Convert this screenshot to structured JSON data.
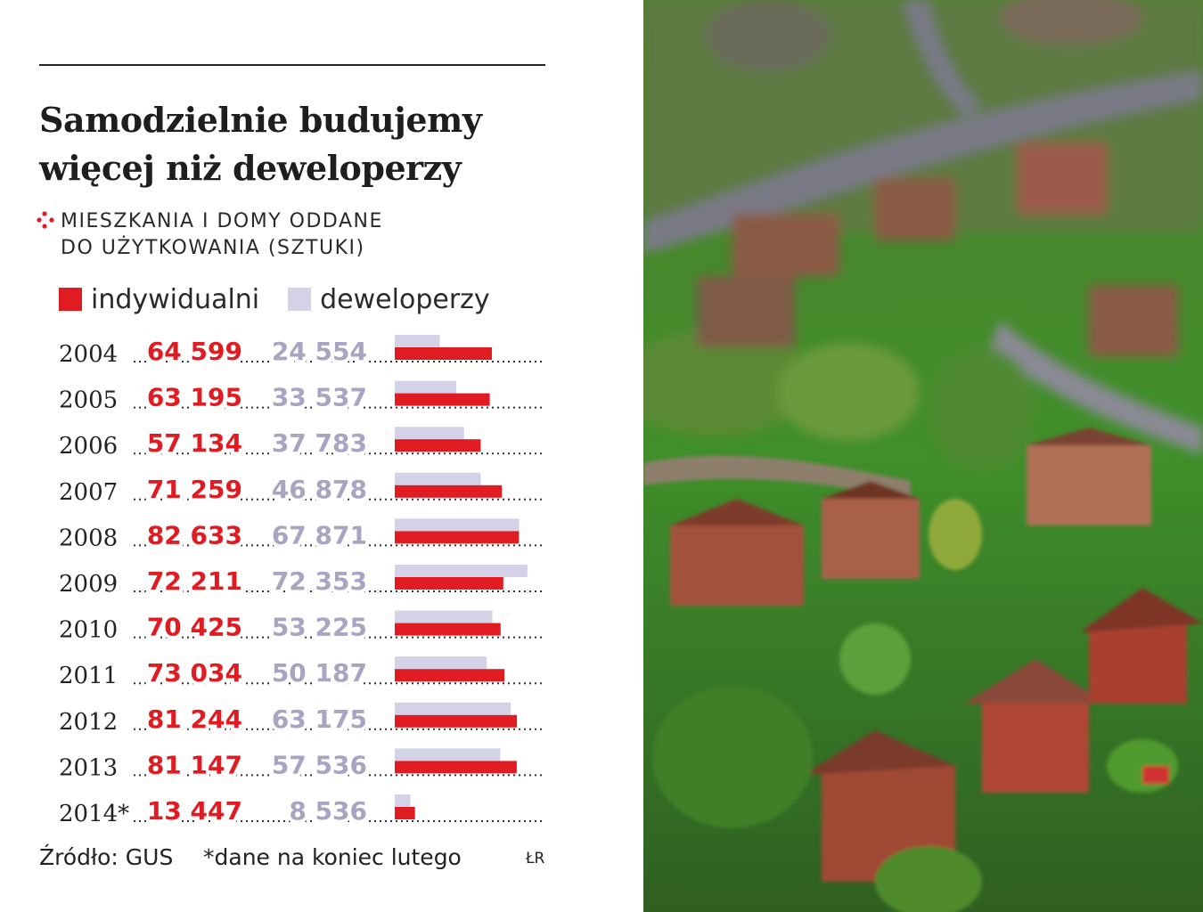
{
  "title_line1": "Samodzielnie budujemy",
  "title_line2": "więcej niż deweloperzy",
  "subtitle_line1": "Mieszkania i domy oddane",
  "subtitle_line2": "do użytkowania (sztuki)",
  "legend": {
    "individual_label": "indywidualni",
    "developer_label": "deweloperzy"
  },
  "colors": {
    "individual": "#e11b22",
    "developer": "#d3d2e6",
    "developer_text": "#a8a5c2"
  },
  "chart_data": {
    "type": "bar",
    "categories": [
      "2004",
      "2005",
      "2006",
      "2007",
      "2008",
      "2009",
      "2010",
      "2011",
      "2012",
      "2013",
      "2014*"
    ],
    "series": [
      {
        "name": "indywidualni",
        "values": [
          64599,
          63195,
          57134,
          71259,
          82633,
          72211,
          70425,
          73034,
          81244,
          81147,
          13447
        ],
        "labels": [
          "64 599",
          "63 195",
          "57 134",
          "71 259",
          "82 633",
          "72 211",
          "70 425",
          "73 034",
          "81 244",
          "81 147",
          "13 447"
        ]
      },
      {
        "name": "deweloperzy",
        "values": [
          24554,
          33537,
          37783,
          46878,
          67871,
          72353,
          53225,
          50187,
          63175,
          57536,
          8536
        ],
        "labels": [
          "24 554",
          "33 537",
          "37 783",
          "46 878",
          "67 871",
          "72 353",
          "53 225",
          "50 187",
          "63 175",
          "57 536",
          "8 536"
        ]
      }
    ],
    "orientation": "horizontal"
  },
  "footer": {
    "source": "Źródło: GUS",
    "note": "*dane na koniec lutego",
    "author": "ŁR"
  }
}
